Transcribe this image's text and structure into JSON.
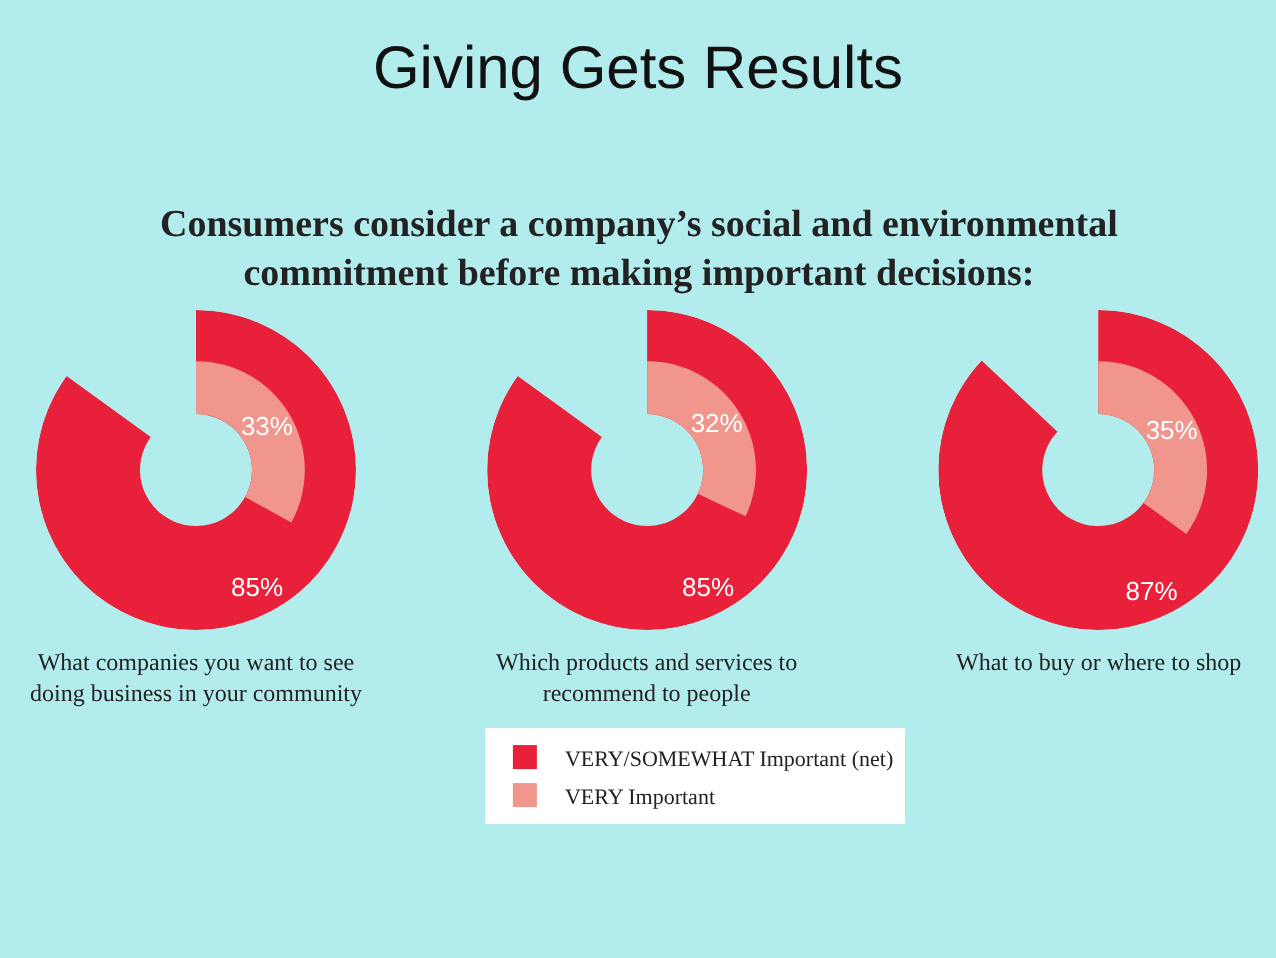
{
  "chart_data": {
    "type": "other",
    "title": "Giving Gets Results",
    "subtitle": "Consumers consider a company’s social and environmental commitment before making important decisions:",
    "categories": [
      "What companies you want to see doing business in your community",
      "Which products and services to recommend to people",
      "What to buy or where to shop"
    ],
    "series": [
      {
        "name": "VERY/SOMEWHAT Important (net)",
        "color": "#e8203a",
        "values": [
          85,
          85,
          87
        ],
        "value_labels": [
          "85%",
          "85%",
          "87%"
        ]
      },
      {
        "name": "VERY Important",
        "color": "#f0968c",
        "values": [
          33,
          32,
          35
        ],
        "value_labels": [
          "33%",
          "32%",
          "35%"
        ]
      }
    ],
    "legend": "bottom"
  }
}
